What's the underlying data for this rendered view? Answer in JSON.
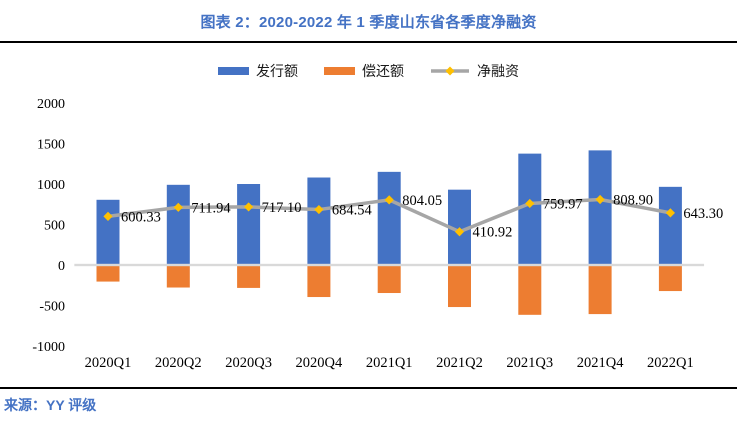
{
  "title": "图表 2：2020-2022 年 1 季度山东省各季度净融资",
  "source": "来源：YY 评级",
  "colors": {
    "accent_blue": "#4472C4",
    "issuance_blue": "#4472C4",
    "repayment_orange": "#ED7D31",
    "net_line_gray": "#A6A6A6",
    "net_marker_gold": "#FFC000",
    "zero_line_gray": "#D9D9D9",
    "divider_black": "#000000",
    "text_black": "#000000"
  },
  "legend": [
    {
      "label": "发行额",
      "type": "bar",
      "color": "#4472C4"
    },
    {
      "label": "偿还额",
      "type": "bar",
      "color": "#ED7D31"
    },
    {
      "label": "净融资",
      "type": "line",
      "color": "#A6A6A6",
      "marker_color": "#FFC000"
    }
  ],
  "chart_data": {
    "type": "bar",
    "subtype": "bar+line combo",
    "title": "图表 2：2020-2022 年 1 季度山东省各季度净融资",
    "categories": [
      "2020Q1",
      "2020Q2",
      "2020Q3",
      "2020Q4",
      "2021Q1",
      "2021Q2",
      "2021Q3",
      "2021Q4",
      "2022Q1"
    ],
    "series": [
      {
        "name": "发行额",
        "type": "bar",
        "color": "#4472C4",
        "values": [
          805,
          990,
          1000,
          1080,
          1150,
          930,
          1375,
          1415,
          965
        ]
      },
      {
        "name": "偿还额",
        "type": "bar",
        "color": "#ED7D31",
        "values": [
          -204.67,
          -278.06,
          -282.9,
          -395.46,
          -345.95,
          -519.08,
          -615.03,
          -606.1,
          -321.7
        ]
      },
      {
        "name": "净融资",
        "type": "line",
        "color": "#A6A6A6",
        "marker": "diamond",
        "marker_color": "#FFC000",
        "values": [
          600.33,
          711.94,
          717.1,
          684.54,
          804.05,
          410.92,
          759.97,
          808.9,
          643.3
        ]
      }
    ],
    "data_labels": [
      "600.33",
      "711.94",
      "717.10",
      "684.54",
      "804.05",
      "410.92",
      "759.97",
      "808.90",
      "643.30"
    ],
    "ylim": [
      -1000,
      2000
    ],
    "yticks": [
      "2000",
      "1500",
      "1000",
      "500",
      "0",
      "-500",
      "-1000"
    ],
    "ytick_values": [
      2000,
      1500,
      1000,
      500,
      0,
      -500,
      -1000
    ],
    "grid": false,
    "legend_position": "top"
  }
}
